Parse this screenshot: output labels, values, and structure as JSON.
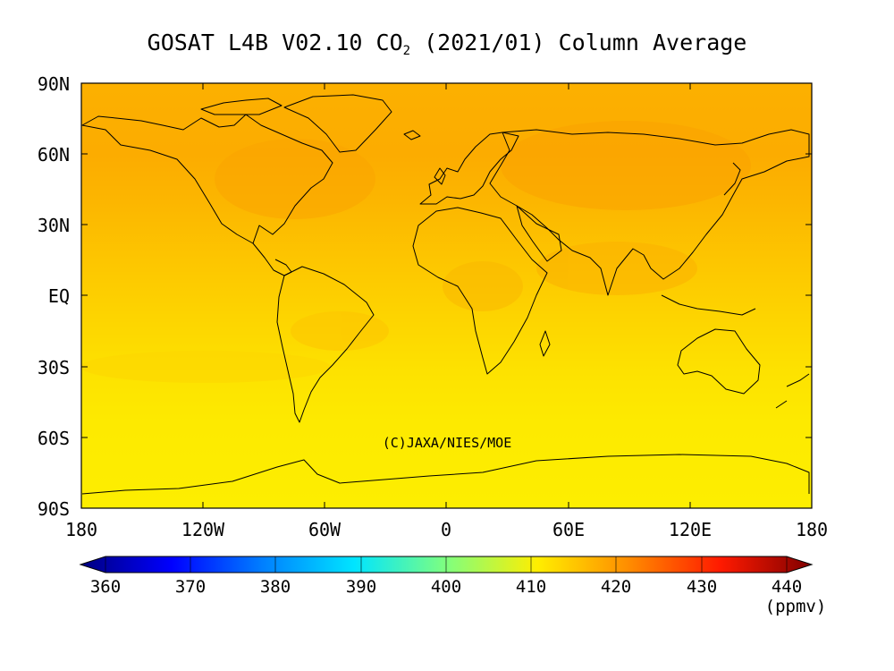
{
  "title_main": "GOSAT L4B V02.10 CO",
  "title_sub": "2",
  "title_rest": " (2021/01) Column Average",
  "copyright": "(C)JAXA/NIES/MOE",
  "y_ticks": [
    "90N",
    "60N",
    "30N",
    "EQ",
    "30S",
    "60S",
    "90S"
  ],
  "x_ticks": [
    "180",
    "120W",
    "60W",
    "0",
    "60E",
    "120E",
    "180"
  ],
  "colorbar": {
    "ticks": [
      "360",
      "370",
      "380",
      "390",
      "400",
      "410",
      "420",
      "430",
      "440"
    ],
    "unit": "(ppmv)",
    "stops": [
      "#00007f",
      "#0000ff",
      "#0080ff",
      "#00e5ff",
      "#7fff7f",
      "#ffee00",
      "#ff8c00",
      "#ff1a00",
      "#7f0000"
    ]
  },
  "chart_data": {
    "type": "heatmap",
    "title": "GOSAT L4B V02.10 CO₂ (2021/01) Column Average",
    "variable": "CO2 column average",
    "unit": "(ppmv)",
    "period": "2021/01",
    "projection": "equirectangular",
    "lon_range": [
      -180,
      180
    ],
    "lat_range": [
      -90,
      90
    ],
    "colorbar_range": [
      360,
      440
    ],
    "colorbar_ticks": [
      360,
      370,
      380,
      390,
      400,
      410,
      420,
      430,
      440
    ],
    "latitude_band_means": [
      {
        "lat": 90,
        "ppmv": 414.0
      },
      {
        "lat": 60,
        "ppmv": 414.3
      },
      {
        "lat": 45,
        "ppmv": 414.5
      },
      {
        "lat": 30,
        "ppmv": 414.0
      },
      {
        "lat": 15,
        "ppmv": 413.3
      },
      {
        "lat": 0,
        "ppmv": 412.5
      },
      {
        "lat": -15,
        "ppmv": 412.0
      },
      {
        "lat": -30,
        "ppmv": 411.6
      },
      {
        "lat": -45,
        "ppmv": 411.2
      },
      {
        "lat": -60,
        "ppmv": 410.9
      },
      {
        "lat": -90,
        "ppmv": 410.8
      }
    ]
  }
}
